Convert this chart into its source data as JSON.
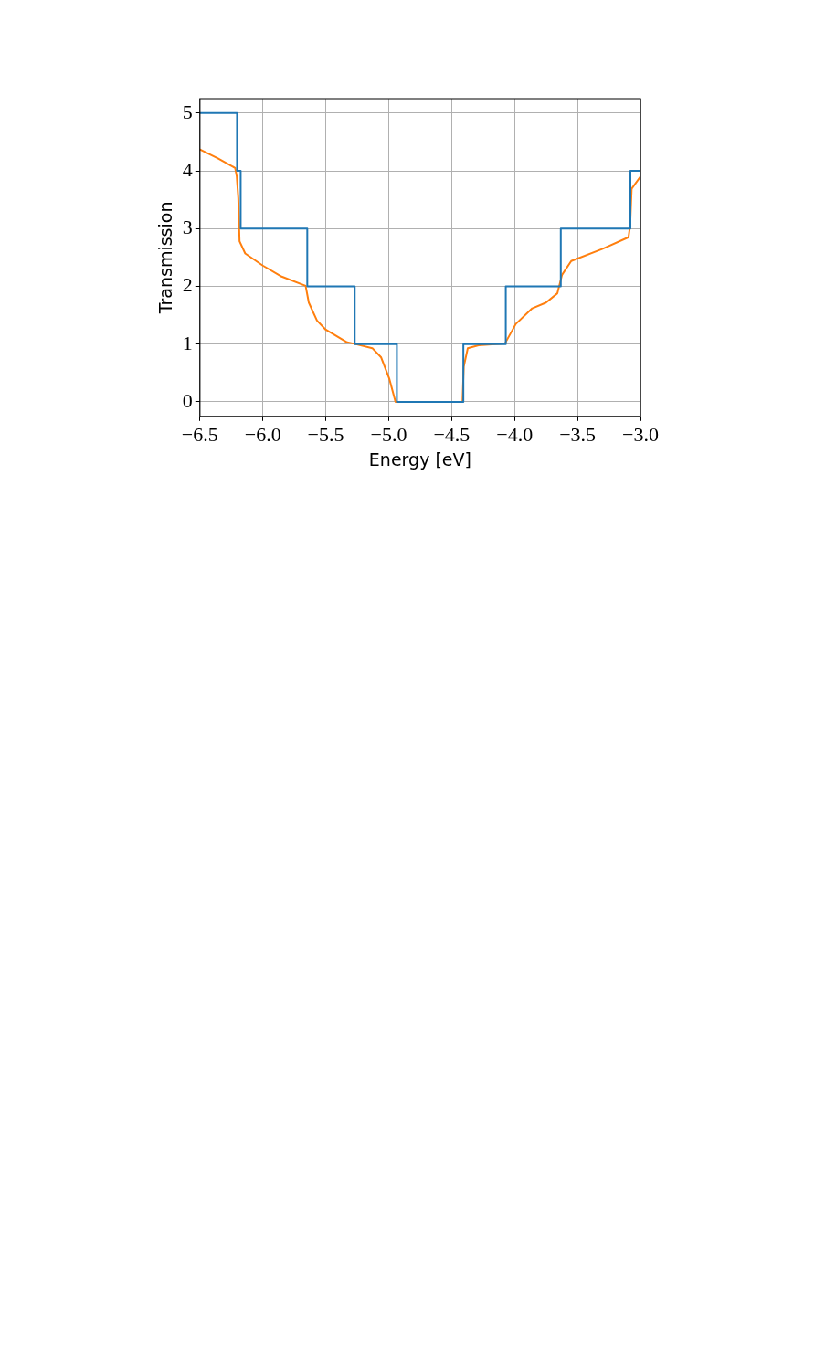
{
  "chart_data": {
    "type": "line",
    "xlabel": "Energy [eV]",
    "ylabel": "Transmission",
    "xlim": [
      -6.5,
      -3.0
    ],
    "xticks": [
      {
        "value": -6.5,
        "label": "−6.5"
      },
      {
        "value": -6.0,
        "label": "−6.0"
      },
      {
        "value": -5.5,
        "label": "−5.5"
      },
      {
        "value": -5.0,
        "label": "−5.0"
      },
      {
        "value": -4.5,
        "label": "−4.5"
      },
      {
        "value": -4.0,
        "label": "−4.0"
      },
      {
        "value": -3.5,
        "label": "−3.5"
      },
      {
        "value": -3.0,
        "label": "−3.0"
      }
    ],
    "ylim": [
      -0.25,
      5.25
    ],
    "yticks": [
      0,
      1,
      2,
      3,
      4,
      5
    ],
    "grid": true,
    "legend": false,
    "marker": "none",
    "line_style": "solid",
    "series": [
      {
        "type": "step",
        "color": "#1f77b4",
        "x": [
          -6.5,
          -6.205,
          -6.176,
          -5.647,
          -5.27,
          -4.935,
          -4.407,
          -4.07,
          -3.633,
          -3.08,
          -3.0
        ],
        "values": [
          5,
          4,
          3,
          2,
          1,
          0,
          1,
          2,
          3,
          4,
          4
        ]
      },
      {
        "type": "line",
        "color": "#ff7f0e",
        "x": [
          -6.5,
          -6.36,
          -6.22,
          -6.207,
          -6.195,
          -6.185,
          -6.14,
          -6.0,
          -5.85,
          -5.66,
          -5.635,
          -5.57,
          -5.5,
          -5.33,
          -5.28,
          -5.13,
          -5.06,
          -4.995,
          -4.946,
          -4.414,
          -4.404,
          -4.372,
          -4.286,
          -4.077,
          -3.99,
          -3.86,
          -3.75,
          -3.66,
          -3.623,
          -3.55,
          -3.3,
          -3.095,
          -3.082,
          -3.07,
          -3.0
        ],
        "values": [
          4.37,
          4.22,
          4.05,
          3.9,
          3.53,
          2.78,
          2.57,
          2.36,
          2.17,
          2.01,
          1.72,
          1.41,
          1.25,
          1.03,
          1.01,
          0.93,
          0.77,
          0.4,
          0,
          0,
          0.61,
          0.93,
          0.98,
          1.01,
          1.35,
          1.62,
          1.72,
          1.88,
          2.2,
          2.44,
          2.65,
          2.85,
          3.05,
          3.69,
          3.9
        ]
      }
    ]
  }
}
